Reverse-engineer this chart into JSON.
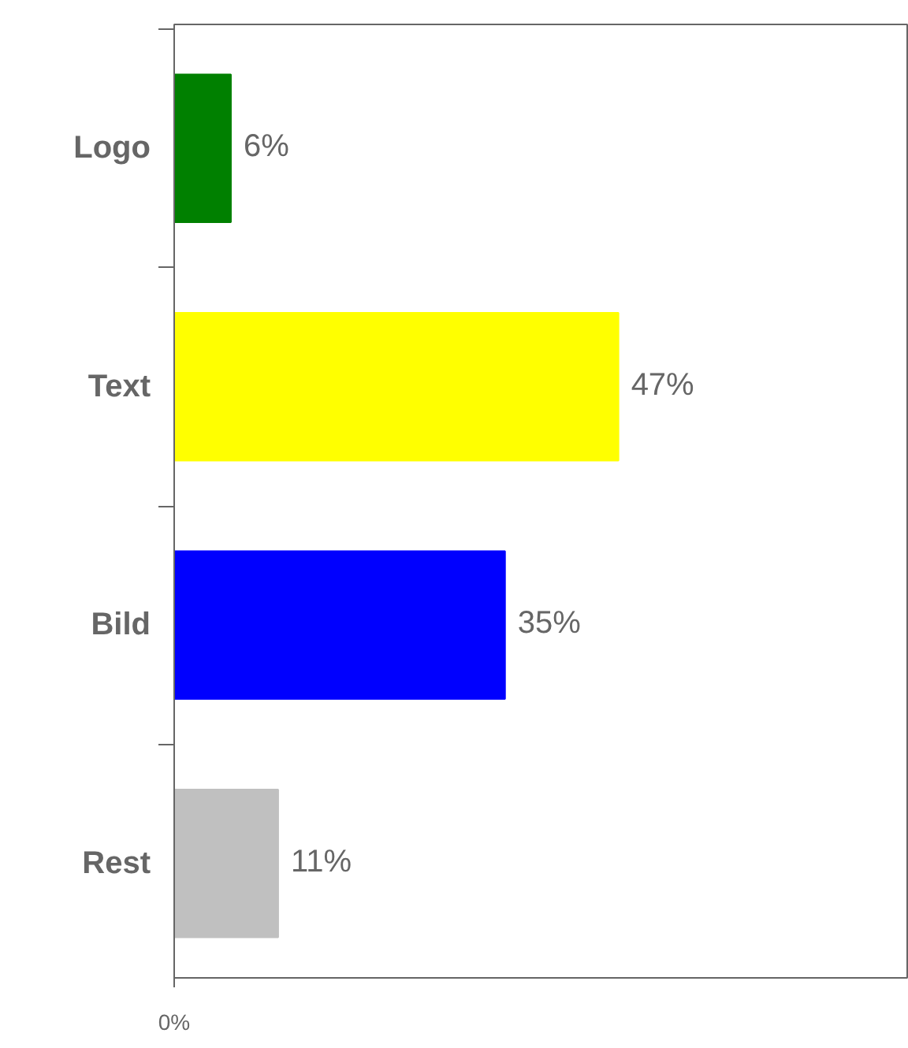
{
  "chart_data": {
    "type": "bar",
    "orientation": "horizontal",
    "categories": [
      "Logo",
      "Text",
      "Bild",
      "Rest"
    ],
    "values": [
      6,
      47,
      35,
      11
    ],
    "colors": [
      "#008000",
      "#ffff00",
      "#0000ff",
      "#c0c0c0"
    ],
    "annotations": [
      "0%"
    ],
    "value_labels": [
      "6%",
      "47%",
      "35%",
      "11%"
    ],
    "grid": false
  }
}
